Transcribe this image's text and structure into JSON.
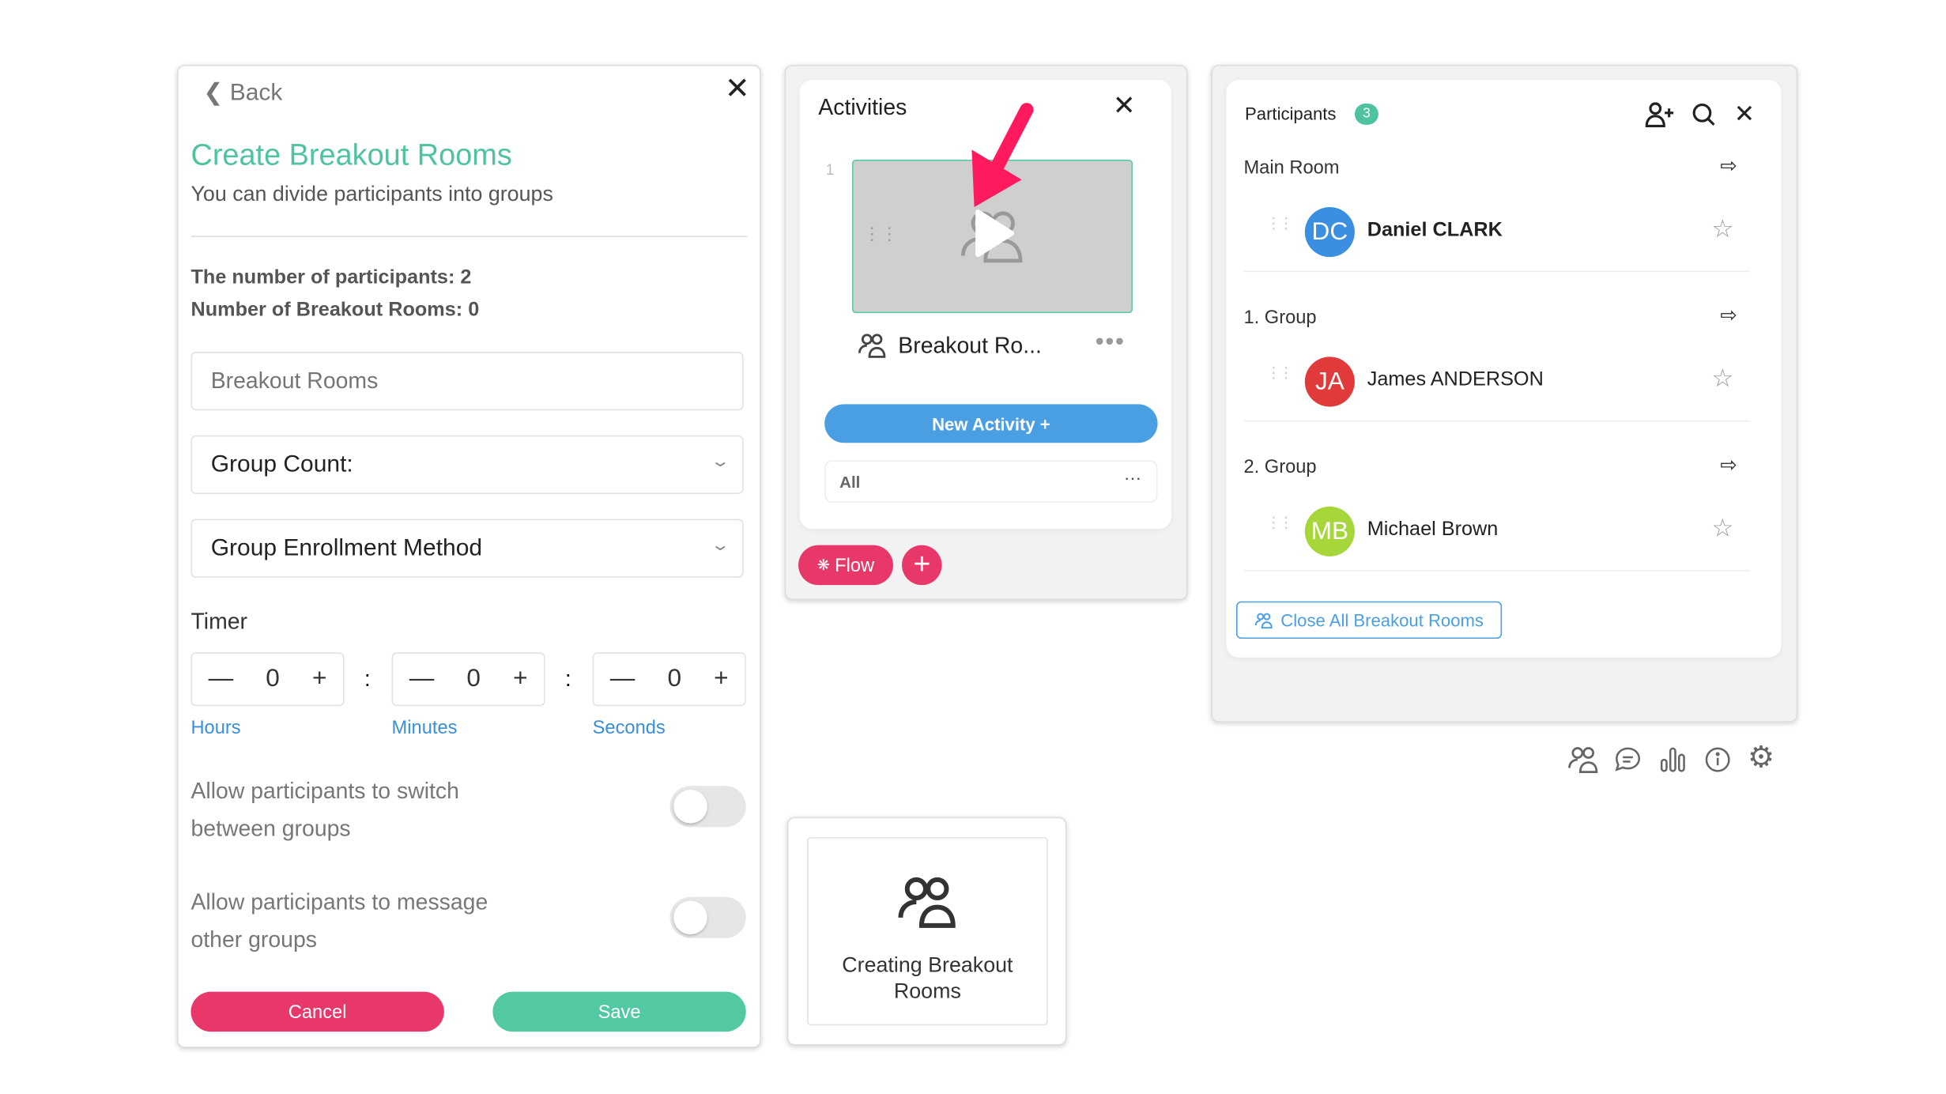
{
  "breakout_form": {
    "back_label": "Back",
    "title": "Create Breakout Rooms",
    "subtitle": "You can divide participants into groups",
    "participants_count_text": "The number of participants: 2",
    "rooms_count_text": "Number of Breakout Rooms: 0",
    "name_input": {
      "value": "",
      "placeholder": "Breakout Rooms"
    },
    "group_count_label": "Group Count:",
    "enrollment_label": "Group Enrollment Method",
    "timer_label": "Timer",
    "timer": [
      {
        "value": "0",
        "unit": "Hours"
      },
      {
        "value": "0",
        "unit": "Minutes"
      },
      {
        "value": "0",
        "unit": "Seconds"
      }
    ],
    "separator": ":",
    "allow_switch": {
      "label": "Allow participants to switch between groups",
      "enabled": false
    },
    "allow_message": {
      "label": "Allow participants to message other groups",
      "enabled": false
    },
    "cancel_label": "Cancel",
    "save_label": "Save",
    "accent_color": "#4fc3a1"
  },
  "activities": {
    "title": "Activities",
    "items": [
      {
        "index": "1",
        "label": "Breakout Ro...",
        "icon": "people-icon"
      }
    ],
    "new_activity_label": "New Activity +",
    "filter_value": "All",
    "flow_label": "Flow",
    "annotation": "pointer-arrow",
    "arrow_color": "#ff1a5e"
  },
  "tooltip_card": {
    "label": "Creating Breakout Rooms",
    "icon": "people-icon"
  },
  "participants": {
    "title": "Participants",
    "count": "3",
    "sections": [
      {
        "name": "Main Room",
        "members": [
          {
            "initials": "DC",
            "name": "Daniel CLARK",
            "color": "#3a8fe0",
            "bold": true
          }
        ]
      },
      {
        "name": "1. Group",
        "members": [
          {
            "initials": "JA",
            "name": "James ANDERSON",
            "color": "#e03a3a",
            "bold": false
          }
        ]
      },
      {
        "name": "2. Group",
        "members": [
          {
            "initials": "MB",
            "name": "Michael Brown",
            "color": "#a6d63a",
            "bold": false
          }
        ]
      }
    ],
    "close_all_label": "Close All Breakout Rooms",
    "footer_icons": [
      "people-icon",
      "chat-icon",
      "chart-icon",
      "info-icon",
      "gear-icon"
    ]
  }
}
